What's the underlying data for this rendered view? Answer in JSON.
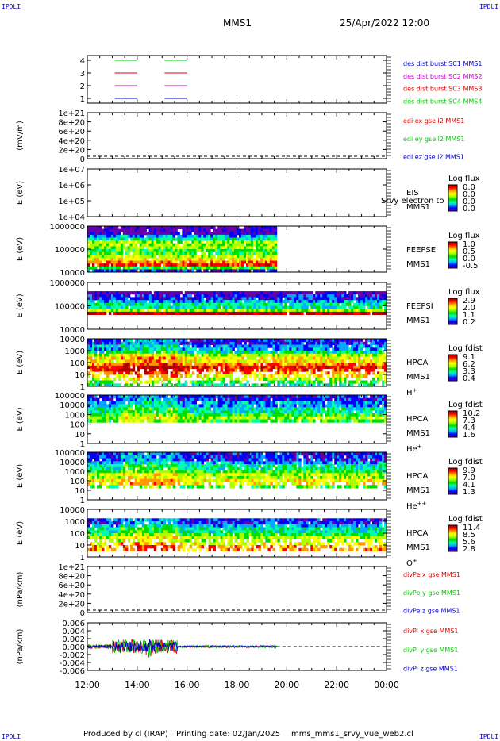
{
  "corners": {
    "label": "IPDLI"
  },
  "header": {
    "spacecraft": "MMS1",
    "datetime": "25/Apr/2022 12:00"
  },
  "footer": {
    "producer": "Produced by cl (IRAP)",
    "printing": "Printing date: 02/Jan/2025",
    "file": "mms_mms1_srvy_vue_web2.cl"
  },
  "colors": {
    "red": "#dd0000",
    "green": "#00cc00",
    "blue": "#0000cc",
    "magenta": "#cc00cc",
    "spectrum": [
      "#6600aa",
      "#0000ff",
      "#00aaff",
      "#00ffaa",
      "#00dd00",
      "#aaff00",
      "#ffff00",
      "#ff9900",
      "#ff0000",
      "#aa0000"
    ]
  },
  "chart_data": {
    "type": "heatmap",
    "x_ticks": [
      "12:00",
      "14:00",
      "16:00",
      "18:00",
      "20:00",
      "22:00",
      "00:00"
    ],
    "x_range_hours": [
      12,
      24
    ],
    "panels": [
      {
        "id": "burst",
        "kind": "burst",
        "ylabel": "",
        "yticks": [
          "4",
          "3",
          "2",
          "1"
        ],
        "legend": [
          {
            "text": "des dist burst SC1 MMS1",
            "color": "#0000cc"
          },
          {
            "text": "des dist burst SC2 MMS2",
            "color": "#cc00cc"
          },
          {
            "text": "des dist burst SC3 MMS3",
            "color": "#dd0000"
          },
          {
            "text": "des dist burst SC4 MMS4",
            "color": "#00cc00"
          }
        ],
        "intervals": [
          [
            13.1,
            14.0
          ],
          [
            15.1,
            16.0
          ]
        ]
      },
      {
        "id": "edi",
        "kind": "line",
        "ylabel": "(mV/m)",
        "yticks": [
          "1e+21",
          "8e+20",
          "6e+20",
          "4e+20",
          "2e+20",
          "0"
        ],
        "legend": [
          {
            "text": "edi ex gse l2 MMS1",
            "color": "#dd0000"
          },
          {
            "text": "edi ey gse l2 MMS1",
            "color": "#00cc00"
          },
          {
            "text": "edi ez gse l2 MMS1",
            "color": "#0000cc"
          }
        ]
      },
      {
        "id": "eis",
        "kind": "spec-empty",
        "ylabel": "E (eV)",
        "yticks": [
          "1e+07",
          "1e+06",
          "1e+05",
          "1e+04"
        ],
        "inst": [
          "EIS",
          "MMS1"
        ],
        "overlay": "Srvy electron to",
        "cb_title": "Log flux",
        "cb_ticks": [
          "0.0",
          "0.0",
          "0.0",
          "0.0"
        ]
      },
      {
        "id": "feepse",
        "kind": "spec",
        "ylabel": "E (eV)",
        "yticks": [
          "1000000",
          "100000",
          "10000"
        ],
        "inst": [
          "FEEPSE",
          "MMS1"
        ],
        "cb_title": "Log flux",
        "cb_ticks": [
          "1.0",
          "0.5",
          "0.0",
          "-0.5"
        ],
        "t_end": 19.6,
        "profile": [
          0,
          0,
          0,
          2,
          3,
          5,
          5,
          5,
          4,
          4,
          5,
          6,
          7,
          8,
          4,
          1
        ]
      },
      {
        "id": "feepsi",
        "kind": "spec",
        "ylabel": "E (eV)",
        "yticks": [
          "1000000",
          "100000",
          "10000"
        ],
        "inst": [
          "FEEPSI",
          "MMS1"
        ],
        "cb_title": "Log flux",
        "cb_ticks": [
          "2.9",
          "2.0",
          "1.1",
          "0.2"
        ],
        "t_end": 24,
        "profile": [
          -1,
          -1,
          -1,
          0,
          1,
          1,
          2,
          3,
          3,
          5,
          9,
          -1,
          -1,
          -1,
          -1,
          -1
        ]
      },
      {
        "id": "hpca-h",
        "kind": "spec",
        "ylabel": "E (eV)",
        "yticks": [
          "10000",
          "1000",
          "100",
          "10",
          "1"
        ],
        "inst": [
          "HPCA",
          "MMS1",
          "H+"
        ],
        "cb_title": "Log fdist",
        "cb_ticks": [
          "9.1",
          "6.2",
          "3.3",
          "0.4"
        ],
        "t_end": 24,
        "profile": [
          1,
          1,
          2,
          2,
          3,
          5,
          6,
          6,
          7,
          8,
          8,
          7,
          6,
          5,
          4,
          3
        ]
      },
      {
        "id": "hpca-he",
        "kind": "spec",
        "ylabel": "E (eV)",
        "yticks": [
          "100000",
          "10000",
          "1000",
          "100",
          "10",
          "1"
        ],
        "inst": [
          "HPCA",
          "MMS1",
          "He+"
        ],
        "cb_title": "Log fdist",
        "cb_ticks": [
          "10.2",
          "7.3",
          "4.4",
          "1.6"
        ],
        "t_end": 24,
        "profile": [
          1,
          1,
          2,
          2,
          3,
          3,
          4,
          5,
          4,
          -1,
          -1,
          -1,
          -1,
          -1,
          -1,
          -1
        ]
      },
      {
        "id": "hpca-hepp",
        "kind": "spec",
        "ylabel": "E (eV)",
        "yticks": [
          "100000",
          "10000",
          "1000",
          "100",
          "10",
          "1"
        ],
        "inst": [
          "HPCA",
          "MMS1",
          "He++"
        ],
        "cb_title": "Log fdist",
        "cb_ticks": [
          "9.9",
          "7.0",
          "4.1",
          "1.3"
        ],
        "t_end": 24,
        "profile": [
          1,
          1,
          1,
          2,
          3,
          3,
          4,
          5,
          5,
          6,
          6,
          4,
          -1,
          -1,
          -1,
          -1
        ]
      },
      {
        "id": "hpca-o",
        "kind": "spec",
        "ylabel": "E (eV)",
        "yticks": [
          "10000",
          "1000",
          "100",
          "10",
          "1"
        ],
        "inst": [
          "HPCA",
          "MMS1",
          "O+"
        ],
        "cb_title": "Log fdist",
        "cb_ticks": [
          "11.4",
          "8.5",
          "5.6",
          "2.8"
        ],
        "t_end": 24,
        "profile": [
          -1,
          -1,
          -1,
          1,
          1,
          2,
          3,
          3,
          4,
          5,
          5,
          6,
          7,
          7,
          -1,
          -1
        ]
      },
      {
        "id": "divpe",
        "kind": "line",
        "ylabel": "(nPa/km)",
        "yticks": [
          "1e+21",
          "8e+20",
          "6e+20",
          "4e+20",
          "2e+20",
          "0"
        ],
        "legend": [
          {
            "text": "divPe x gse MMS1",
            "color": "#dd0000"
          },
          {
            "text": "divPe y gse MMS1",
            "color": "#00cc00"
          },
          {
            "text": "divPe z gse MMS1",
            "color": "#0000cc"
          }
        ]
      },
      {
        "id": "divpi",
        "kind": "divpi",
        "ylabel": "(nPa/km)",
        "yticks": [
          "0.006",
          "0.004",
          "0.002",
          "0.000",
          "-0.002",
          "-0.004",
          "-0.006"
        ],
        "legend": [
          {
            "text": "divPi x gse MMS1",
            "color": "#dd0000"
          },
          {
            "text": "divPi y gse MMS1",
            "color": "#00cc00"
          },
          {
            "text": "divPi z gse MMS1",
            "color": "#0000cc"
          }
        ],
        "t_end": 19.6
      }
    ]
  }
}
